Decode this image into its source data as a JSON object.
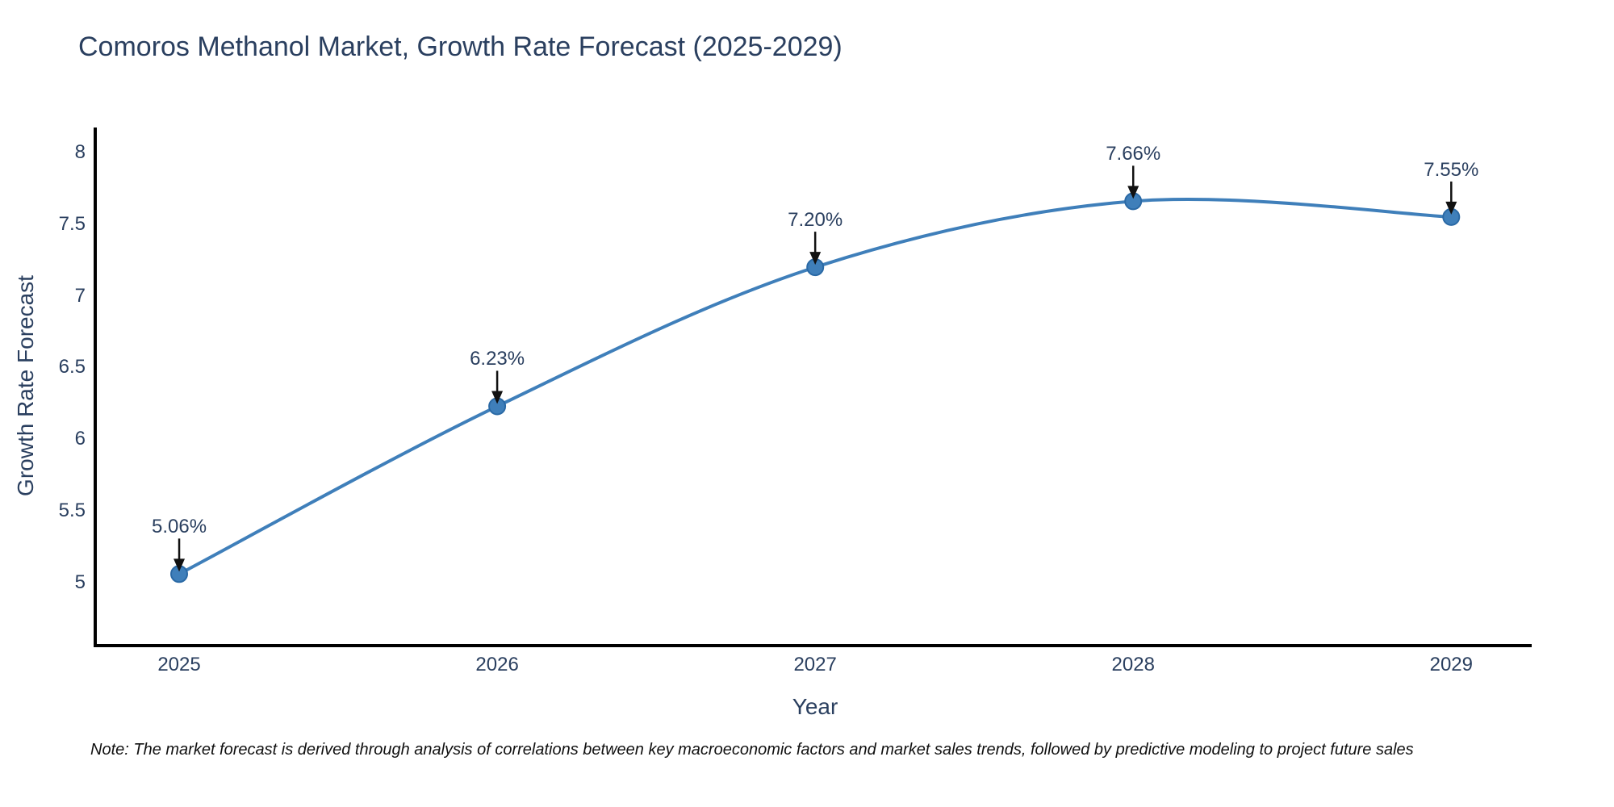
{
  "title": "Comoros Methanol Market, Growth Rate Forecast (2025-2029)",
  "note": "Note: The market forecast is derived through analysis of correlations between key macroeconomic factors and market sales trends, followed by predictive modeling to project future sales",
  "chart_data": {
    "type": "line",
    "title": "Comoros Methanol Market, Growth Rate Forecast (2025-2029)",
    "xlabel": "Year",
    "ylabel": "Growth Rate Forecast",
    "x": [
      2025,
      2026,
      2027,
      2028,
      2029
    ],
    "y": [
      5.06,
      6.23,
      7.2,
      7.66,
      7.55
    ],
    "point_labels": [
      "5.06%",
      "6.23%",
      "7.20%",
      "7.66%",
      "7.55%"
    ],
    "x_ticks": [
      "2025",
      "2026",
      "2027",
      "2028",
      "2029"
    ],
    "y_ticks": [
      8,
      7.5,
      7,
      6.5,
      6,
      5.5,
      5
    ],
    "xlim": [
      2024.736,
      2029.253
    ],
    "ylim": [
      4.561,
      8.163
    ],
    "grid": false,
    "legend": "none",
    "line_shape": "spline",
    "annotation_arrows": "down",
    "colors": {
      "line": "#3f7fba",
      "marker_fill": "#3f7fba",
      "marker_edge": "#2a69a5",
      "arrow": "#111111",
      "text": "#2a3f5f",
      "axis_line": "#000000",
      "background": "#ffffff"
    }
  }
}
